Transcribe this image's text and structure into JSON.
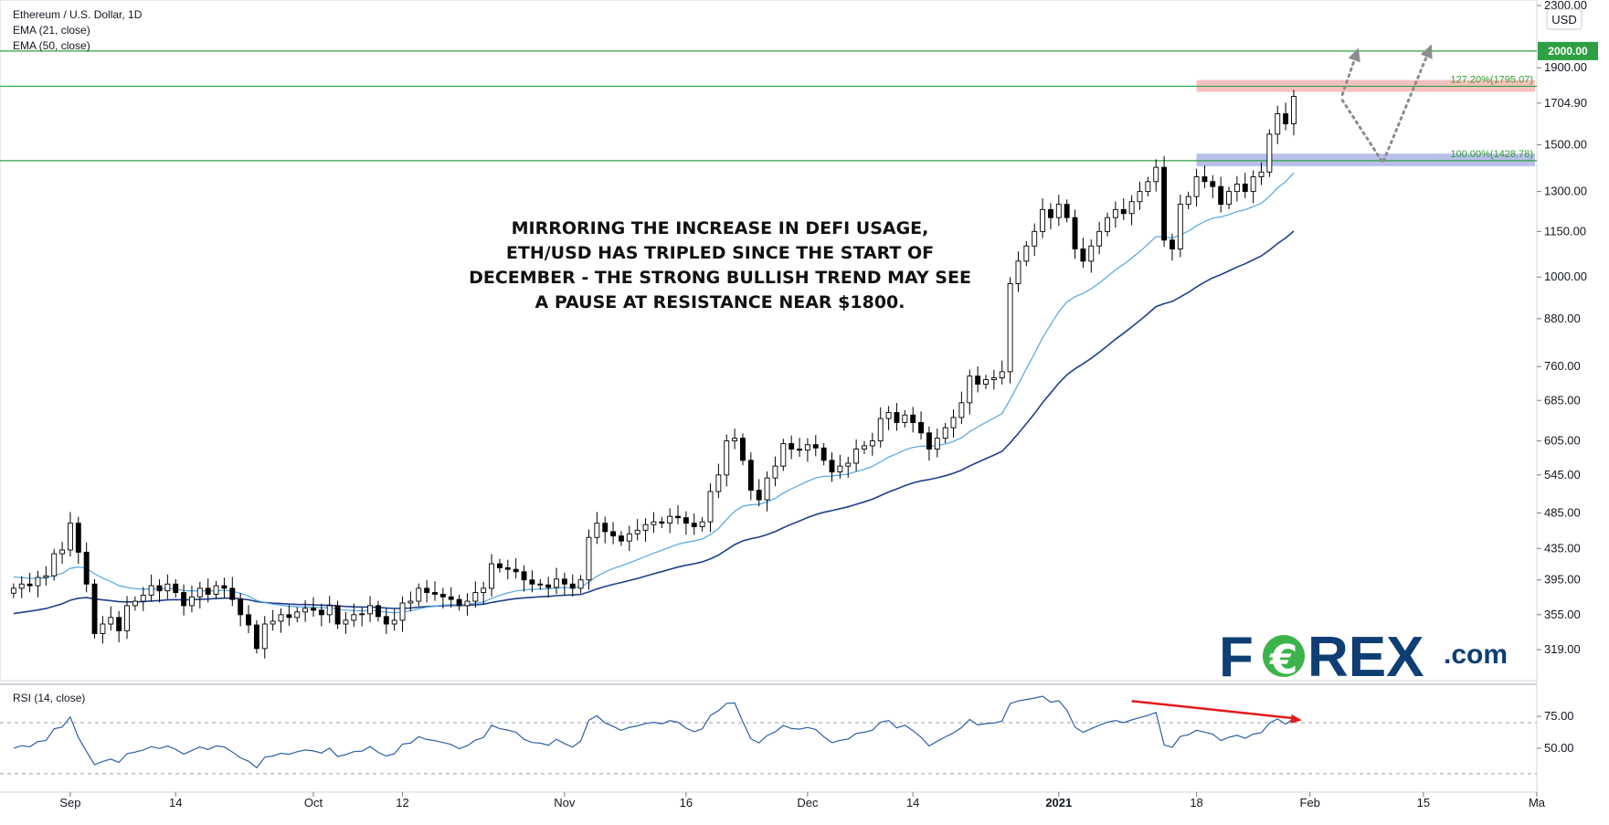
{
  "chart_data": {
    "type": "candlestick",
    "title": "Ethereum / U.S. Dollar, 1D",
    "indicators": [
      "EMA (21, close)",
      "EMA (50, close)"
    ],
    "currency": "USD",
    "price_scale": "log",
    "ylim": [
      290,
      2300
    ],
    "price_ticks": [
      "2300.00",
      "1900.00",
      "1704.90",
      "1500.00",
      "1300.00",
      "1150.00",
      "1000.00",
      "880.00",
      "760.00",
      "685.00",
      "605.00",
      "545.00",
      "485.00",
      "435.00",
      "395.00",
      "355.00",
      "319.00"
    ],
    "price_tick_values": [
      2300,
      1900,
      1704.9,
      1500,
      1300,
      1150,
      1000,
      880,
      760,
      685,
      605,
      545,
      485,
      435,
      395,
      355,
      319
    ],
    "x_ticks": [
      "Sep",
      "14",
      "Oct",
      "12",
      "Nov",
      "16",
      "Dec",
      "14",
      "2021",
      "18",
      "Feb",
      "15",
      "Ma"
    ],
    "x_tick_dates": [
      "2020-09-01",
      "2020-09-14",
      "2020-10-01",
      "2020-10-12",
      "2020-11-01",
      "2020-11-16",
      "2020-12-01",
      "2020-12-14",
      "2021-01-01",
      "2021-01-18",
      "2021-02-01",
      "2021-02-15",
      "2021-03-01"
    ],
    "first_date": "2020-08-25",
    "x_range": [
      "2020-08-24",
      "2021-03-01"
    ],
    "closes": [
      385,
      390,
      388,
      398,
      400,
      428,
      433,
      470,
      430,
      390,
      335,
      345,
      352,
      338,
      365,
      370,
      377,
      388,
      382,
      390,
      380,
      365,
      375,
      385,
      378,
      388,
      385,
      372,
      355,
      344,
      320,
      345,
      348,
      355,
      352,
      358,
      362,
      360,
      355,
      365,
      345,
      349,
      355,
      356,
      365,
      353,
      345,
      349,
      368,
      370,
      385,
      380,
      378,
      375,
      372,
      365,
      370,
      380,
      385,
      415,
      410,
      408,
      405,
      395,
      390,
      389,
      386,
      396,
      390,
      385,
      395,
      450,
      470,
      458,
      452,
      445,
      455,
      460,
      468,
      472,
      470,
      480,
      478,
      470,
      465,
      472,
      518,
      545,
      605,
      610,
      570,
      520,
      505,
      540,
      560,
      600,
      590,
      588,
      598,
      592,
      570,
      550,
      560,
      565,
      590,
      596,
      605,
      648,
      660,
      640,
      655,
      640,
      620,
      590,
      610,
      630,
      650,
      680,
      738,
      720,
      730,
      734,
      748,
      980,
      1050,
      1100,
      1150,
      1230,
      1200,
      1250,
      1200,
      1090,
      1050,
      1100,
      1150,
      1200,
      1230,
      1215,
      1260,
      1300,
      1340,
      1400,
      1120,
      1090,
      1250,
      1280,
      1360,
      1340,
      1320,
      1250,
      1300,
      1330,
      1300,
      1360,
      1380,
      1550,
      1650,
      1600,
      1740
    ],
    "ema21_start": 400,
    "ema50_start": 355,
    "annotation": [
      "MIRRORING THE INCREASE IN DEFI USAGE,",
      "ETH/USD HAS TRIPLED SINCE THE START OF",
      "DECEMBER - THE STRONG BULLISH TREND MAY SEE",
      "A PAUSE AT RESISTANCE NEAR $1800."
    ],
    "levels": [
      {
        "price": 2000,
        "label": "2000.00",
        "color": "#2ea043"
      },
      {
        "price": 1795.07,
        "label": "127.20%(1795.07)",
        "color": "#2ea043"
      },
      {
        "price": 1428.78,
        "label": "100.00%(1428.78)",
        "color": "#2ea043"
      }
    ],
    "zones": [
      {
        "from": 1765,
        "to": 1830,
        "color": "#f7b5b5"
      },
      {
        "from": 1405,
        "to": 1460,
        "color": "#aab4e6"
      }
    ],
    "projection_path": [
      [
        "2021-02-05",
        1720
      ],
      [
        "2021-02-10",
        1420
      ],
      [
        "2021-02-16",
        2040
      ]
    ],
    "projection_arrow_up": [
      [
        "2021-02-05",
        1750
      ],
      [
        "2021-02-07",
        2020
      ]
    ],
    "rsi": {
      "label": "RSI (14, close)",
      "ticks": [
        "75.00",
        "50.00"
      ],
      "tick_values": [
        75,
        50
      ],
      "upper_band": 70,
      "lower_band": 30,
      "ylim": [
        22,
        98
      ],
      "divergence_arrow": [
        [
          "2021-01-10",
          87
        ],
        [
          "2021-01-31",
          72
        ]
      ]
    },
    "colors": {
      "up_body": "#ffffff",
      "down_body": "#000000",
      "wick": "#000000",
      "ema21": "#53a6e4",
      "ema50": "#1f3f8a",
      "rsi": "#2f5fa6",
      "arrow": "#e5191b",
      "projection": "#8c8c8c",
      "brand_blue": "#0e3e73",
      "brand_green": "#3cb44b"
    }
  },
  "brand": {
    "logo_part1": "F",
    "logo_part2": "REX",
    "logo_suffix": ".com"
  }
}
